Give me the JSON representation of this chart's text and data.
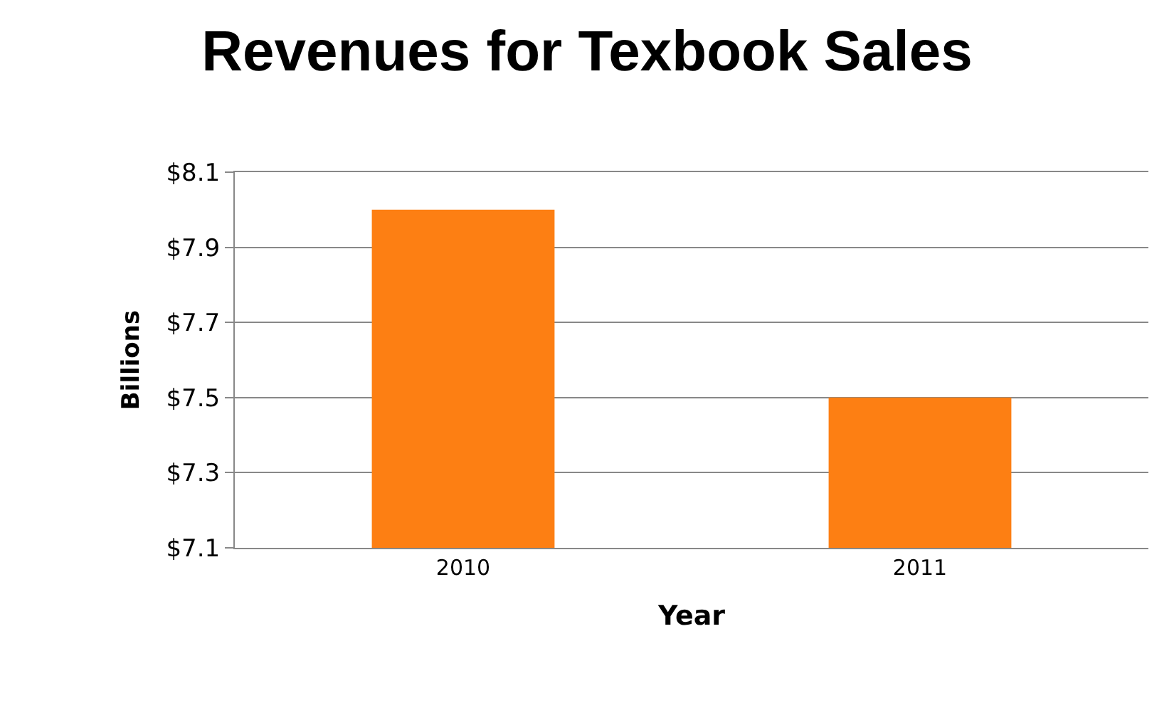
{
  "chart_data": {
    "type": "bar",
    "title": "Revenues for Texbook Sales",
    "xlabel": "Year",
    "ylabel": "Billions",
    "categories": [
      "2010",
      "2011"
    ],
    "values": [
      8.0,
      7.5
    ],
    "color": "#fd7f13",
    "ylim": [
      7.1,
      8.1
    ],
    "yticks": [
      {
        "value": 7.1,
        "label": "$7.1"
      },
      {
        "value": 7.3,
        "label": "$7.3"
      },
      {
        "value": 7.5,
        "label": "$7.5"
      },
      {
        "value": 7.7,
        "label": "$7.7"
      },
      {
        "value": 7.9,
        "label": "$7.9"
      },
      {
        "value": 8.1,
        "label": "$8.1"
      }
    ],
    "grid": "y"
  }
}
